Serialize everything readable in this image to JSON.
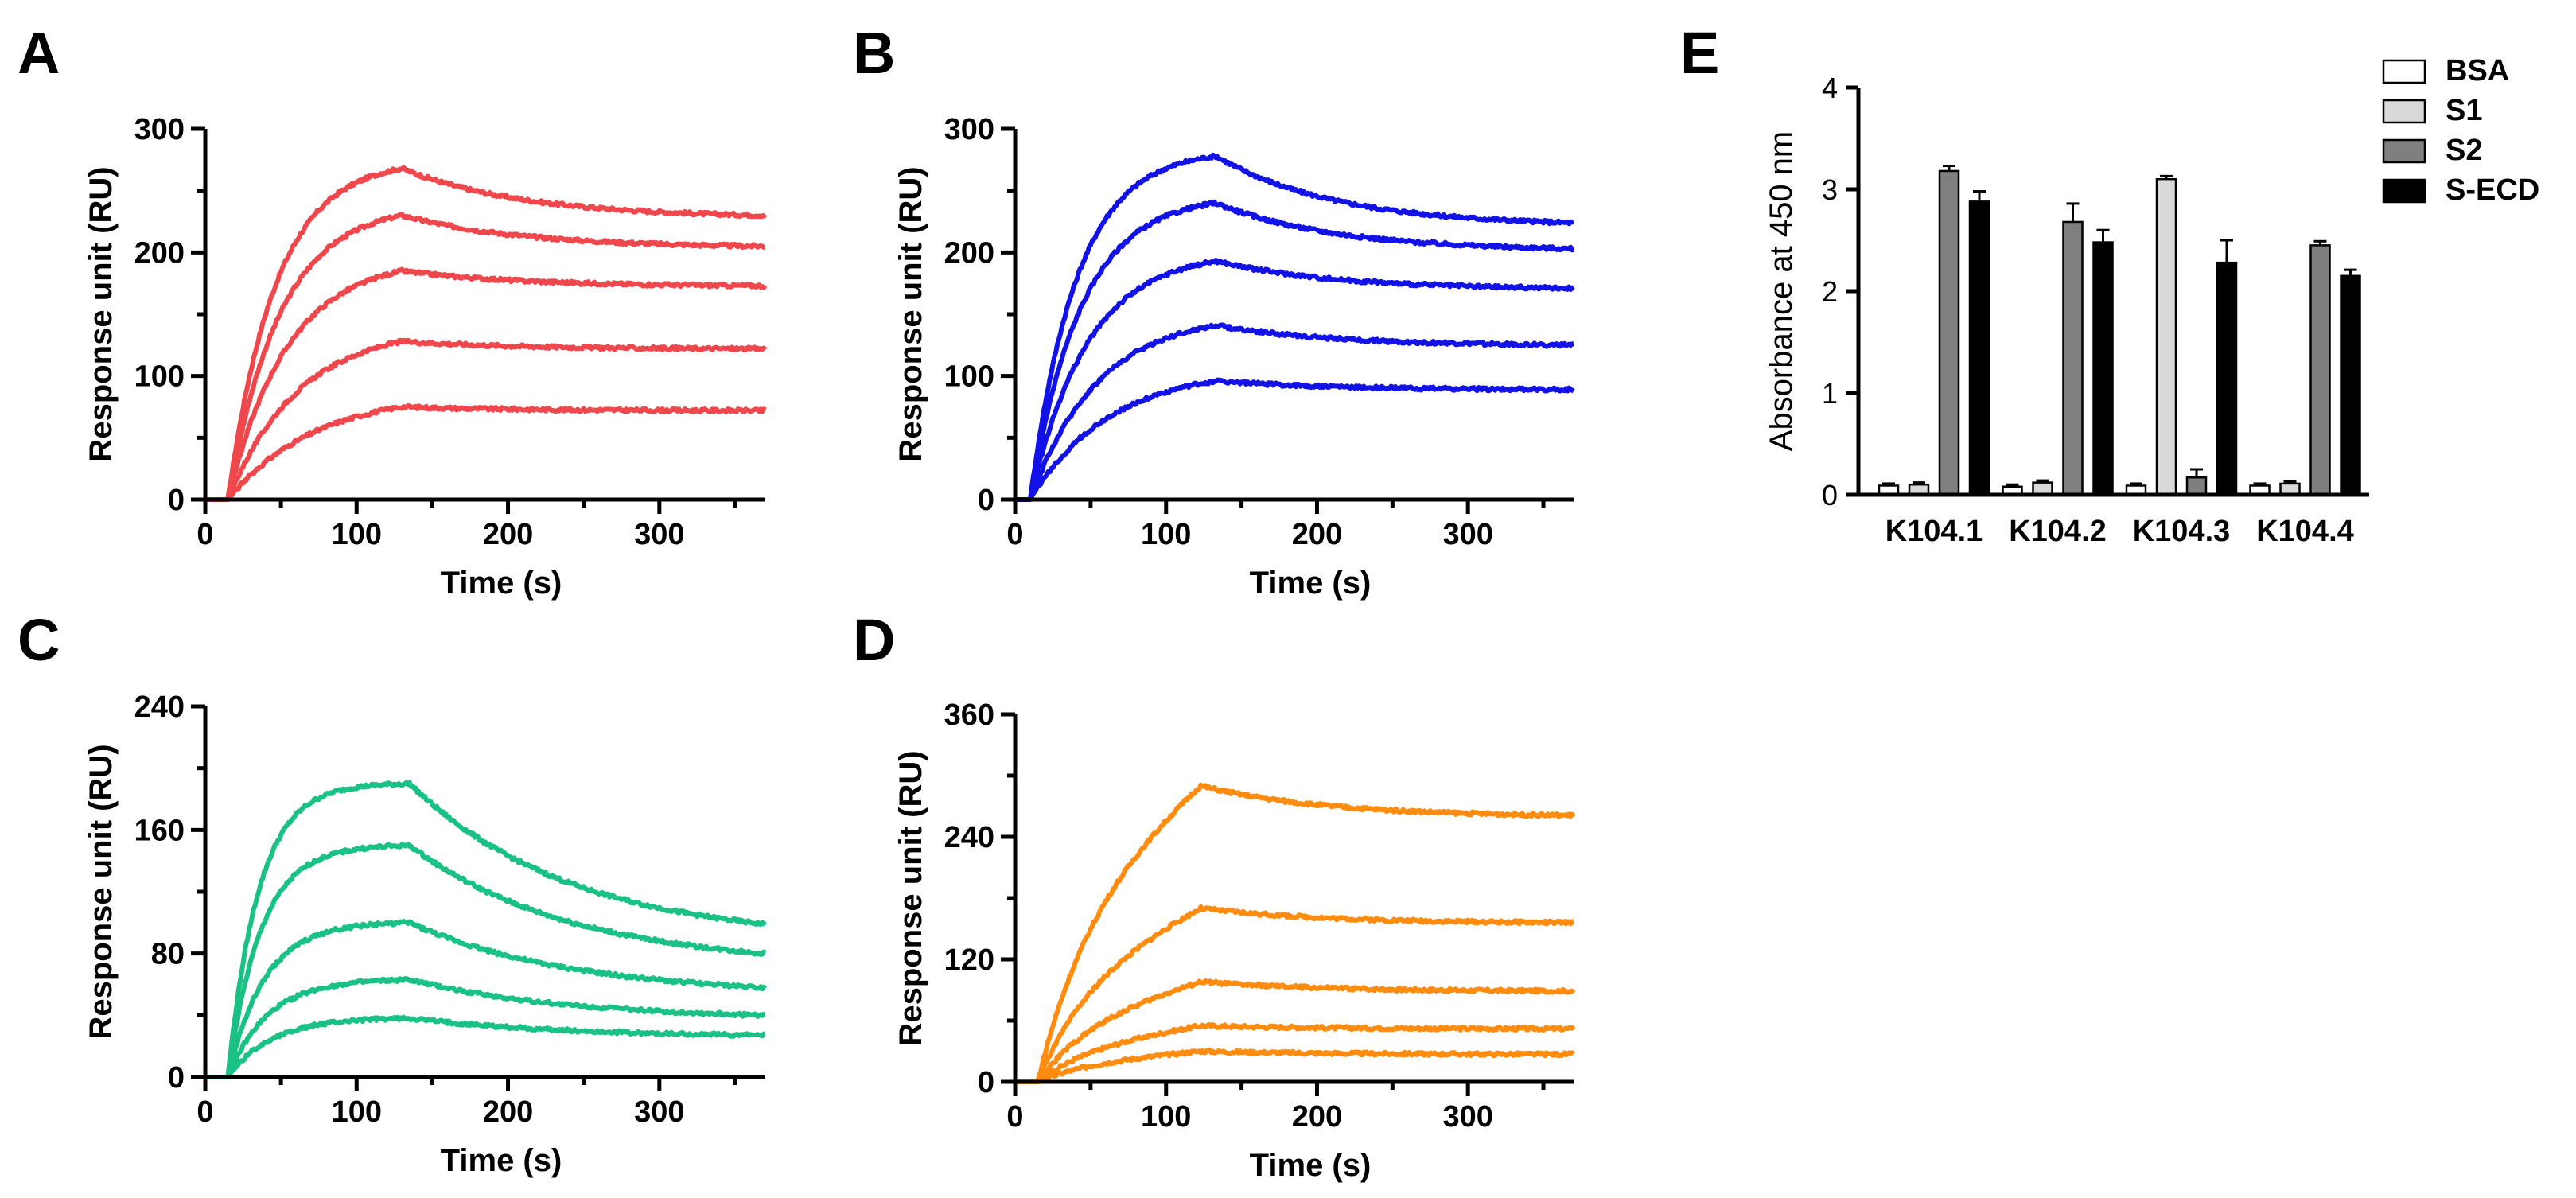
{
  "chart_data": [
    {
      "panel": "A",
      "type": "line",
      "xlabel": "Time (s)",
      "ylabel": "Response unit (RU)",
      "xlim": [
        0,
        370
      ],
      "ylim": [
        0,
        300
      ],
      "xticks": [
        0,
        100,
        200,
        300
      ],
      "yticks": [
        0,
        100,
        200,
        300
      ],
      "color": "#f0474d",
      "injection_start": 15,
      "injection_end": 130,
      "curves": [
        {
          "peak": 268,
          "end": 230
        },
        {
          "peak": 230,
          "end": 205
        },
        {
          "peak": 185,
          "end": 173
        },
        {
          "peak": 128,
          "end": 122
        },
        {
          "peak": 75,
          "end": 72
        }
      ]
    },
    {
      "panel": "B",
      "type": "line",
      "xlabel": "Time (s)",
      "ylabel": "Response unit (RU)",
      "xlim": [
        0,
        370
      ],
      "ylim": [
        0,
        300
      ],
      "xticks": [
        0,
        100,
        200,
        300
      ],
      "yticks": [
        0,
        100,
        200,
        300
      ],
      "color": "#1212e8",
      "injection_start": 10,
      "injection_end": 133,
      "curves": [
        {
          "peak": 278,
          "end": 224
        },
        {
          "peak": 240,
          "end": 203
        },
        {
          "peak": 193,
          "end": 171
        },
        {
          "peak": 141,
          "end": 125
        },
        {
          "peak": 96,
          "end": 89
        }
      ]
    },
    {
      "panel": "C",
      "type": "line",
      "xlabel": "Time (s)",
      "ylabel": "Response unit (RU)",
      "xlim": [
        0,
        370
      ],
      "ylim": [
        0,
        240
      ],
      "xticks": [
        0,
        100,
        200,
        300
      ],
      "yticks": [
        0,
        80,
        160,
        240
      ],
      "color": "#19c184",
      "injection_start": 15,
      "injection_end": 135,
      "curves": [
        {
          "peak": 190,
          "end": 99
        },
        {
          "peak": 150,
          "end": 80
        },
        {
          "peak": 100,
          "end": 58
        },
        {
          "peak": 63,
          "end": 40
        },
        {
          "peak": 38,
          "end": 27
        }
      ]
    },
    {
      "panel": "D",
      "type": "line",
      "xlabel": "Time (s)",
      "ylabel": "Response unit (RU)",
      "xlim": [
        0,
        370
      ],
      "ylim": [
        0,
        360
      ],
      "xticks": [
        0,
        100,
        200,
        300
      ],
      "yticks": [
        0,
        120,
        240,
        360
      ],
      "color": "#ff8c0f",
      "injection_start": 15,
      "injection_end": 123,
      "curves": [
        {
          "peak": 290,
          "end": 261
        },
        {
          "peak": 170,
          "end": 156
        },
        {
          "peak": 98,
          "end": 89
        },
        {
          "peak": 55,
          "end": 52
        },
        {
          "peak": 30,
          "end": 27
        }
      ]
    },
    {
      "panel": "E",
      "type": "bar",
      "ylabel": "Absorbance at 450 nm",
      "ylim": [
        0,
        4
      ],
      "yticks": [
        0,
        1,
        2,
        3,
        4
      ],
      "categories": [
        "K104.1",
        "K104.2",
        "K104.3",
        "K104.4"
      ],
      "series": [
        {
          "name": "BSA",
          "color": "#ffffff",
          "values": [
            0.09,
            0.08,
            0.09,
            0.09
          ],
          "errors": [
            0.02,
            0.02,
            0.02,
            0.02
          ]
        },
        {
          "name": "S1",
          "color": "#d9d9d9",
          "values": [
            0.1,
            0.12,
            3.1,
            0.11
          ],
          "errors": [
            0.02,
            0.02,
            0.03,
            0.02
          ]
        },
        {
          "name": "S2",
          "color": "#7f7f7f",
          "values": [
            3.18,
            2.68,
            0.17,
            2.45
          ],
          "errors": [
            0.05,
            0.18,
            0.08,
            0.04
          ]
        },
        {
          "name": "S-ECD",
          "color": "#000000",
          "values": [
            2.88,
            2.48,
            2.28,
            2.15
          ],
          "errors": [
            0.1,
            0.12,
            0.22,
            0.06
          ]
        }
      ]
    }
  ]
}
